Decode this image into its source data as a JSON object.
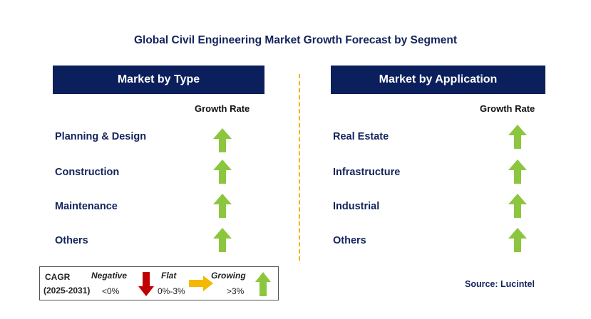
{
  "title": "Global Civil Engineering Market Growth Forecast by Segment",
  "left_panel": {
    "header": "Market by Type",
    "growth_rate_label": "Growth Rate",
    "rows": [
      {
        "label": "Planning & Design",
        "trend": "growing"
      },
      {
        "label": "Construction",
        "trend": "growing"
      },
      {
        "label": "Maintenance",
        "trend": "growing"
      },
      {
        "label": "Others",
        "trend": "growing"
      }
    ]
  },
  "right_panel": {
    "header": "Market by Application",
    "growth_rate_label": "Growth Rate",
    "rows": [
      {
        "label": "Real Estate",
        "trend": "growing"
      },
      {
        "label": "Infrastructure",
        "trend": "growing"
      },
      {
        "label": "Industrial",
        "trend": "growing"
      },
      {
        "label": "Others",
        "trend": "growing"
      }
    ]
  },
  "legend": {
    "cagr_label": "CAGR",
    "period": "(2025-2031)",
    "negative_label": "Negative",
    "negative_range": "<0%",
    "flat_label": "Flat",
    "flat_range": "0%-3%",
    "growing_label": "Growing",
    "growing_range": ">3%"
  },
  "source": "Source: Lucintel",
  "colors": {
    "header_bg": "#0b1f5c",
    "text_navy": "#12235c",
    "growing": "#8cc63f",
    "negative": "#c00000",
    "flat": "#f5b800",
    "divider": "#f2b600"
  },
  "icons": {
    "growing": "up-arrow-icon",
    "negative": "down-arrow-icon",
    "flat": "right-arrow-icon"
  }
}
